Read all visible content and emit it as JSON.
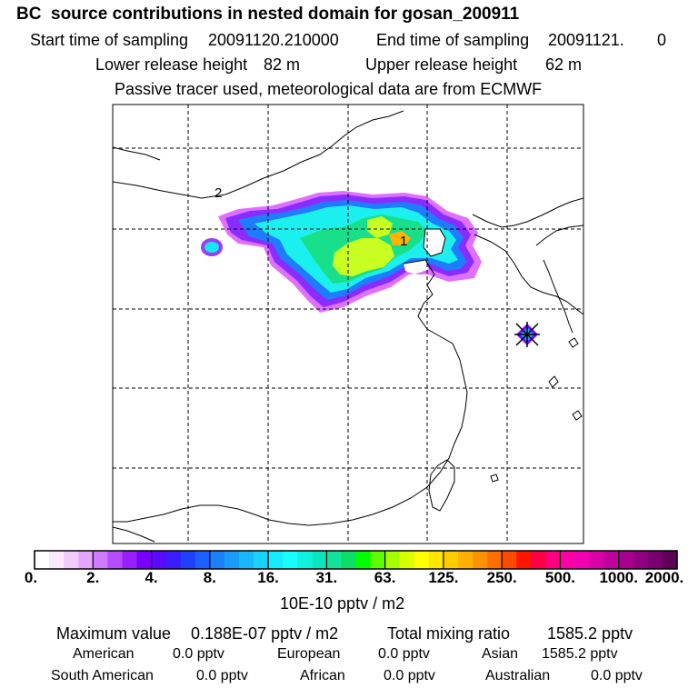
{
  "header": {
    "title": "BC  source contributions in nested domain for gosan_200911",
    "start_label": "Start time of sampling",
    "start_value": "20091120.210000",
    "end_label": "End time of sampling",
    "end_value": "20091121.",
    "end_suffix": "0",
    "lower_label": "Lower release height",
    "lower_value": "82 m",
    "upper_label": "Upper release height",
    "upper_value": "62 m",
    "tracer_note": "Passive tracer used, meteorological data are from ECMWF"
  },
  "map": {
    "labels": {
      "marker_1": "1",
      "marker_2": "2"
    },
    "colors": {
      "frame": "#000000",
      "grid": "#000000",
      "coast": "#000000",
      "station": "#000000"
    }
  },
  "colorbar": {
    "units": "10E-10 pptv / m2",
    "ticks": [
      "0.",
      "2.",
      "4.",
      "8.",
      "16.",
      "31.",
      "63.",
      "125.",
      "250.",
      "500.",
      "1000.",
      "2000."
    ],
    "colors": [
      "#ffffff",
      "#fbeaff",
      "#f3ccff",
      "#e6a6ff",
      "#d07aff",
      "#b64cff",
      "#9a1fff",
      "#7a00ff",
      "#5a0aff",
      "#3b1dff",
      "#2040ff",
      "#1e60ff",
      "#1c7fff",
      "#1a9cff",
      "#18b8ff",
      "#17d4ff",
      "#16ecff",
      "#16ffff",
      "#10f2df",
      "#0ce6bf",
      "#12e39a",
      "#0ddf66",
      "#00ff00",
      "#5cff00",
      "#a6ff00",
      "#d9ff00",
      "#ffff00",
      "#ffe600",
      "#ffcc00",
      "#ffb000",
      "#ff9200",
      "#ff6e00",
      "#ff4a00",
      "#ff1500",
      "#ff0044",
      "#ff0080",
      "#ff00a8",
      "#f000b0",
      "#d800a8",
      "#c0009c",
      "#a8008e",
      "#900080",
      "#780070",
      "#5c0058"
    ]
  },
  "stats": {
    "max_label": "Maximum value",
    "max_value": "0.188E-07 pptv / m2",
    "total_label": "Total mixing ratio",
    "total_value": "1585.2 pptv",
    "regions": [
      {
        "name": "American",
        "value": "0.0 pptv"
      },
      {
        "name": "European",
        "value": "0.0 pptv"
      },
      {
        "name": "Asian",
        "value": "1585.2 pptv"
      },
      {
        "name": "South American",
        "value": "0.0 pptv"
      },
      {
        "name": "African",
        "value": "0.0 pptv"
      },
      {
        "name": "Australian",
        "value": "0.0 pptv"
      }
    ]
  }
}
